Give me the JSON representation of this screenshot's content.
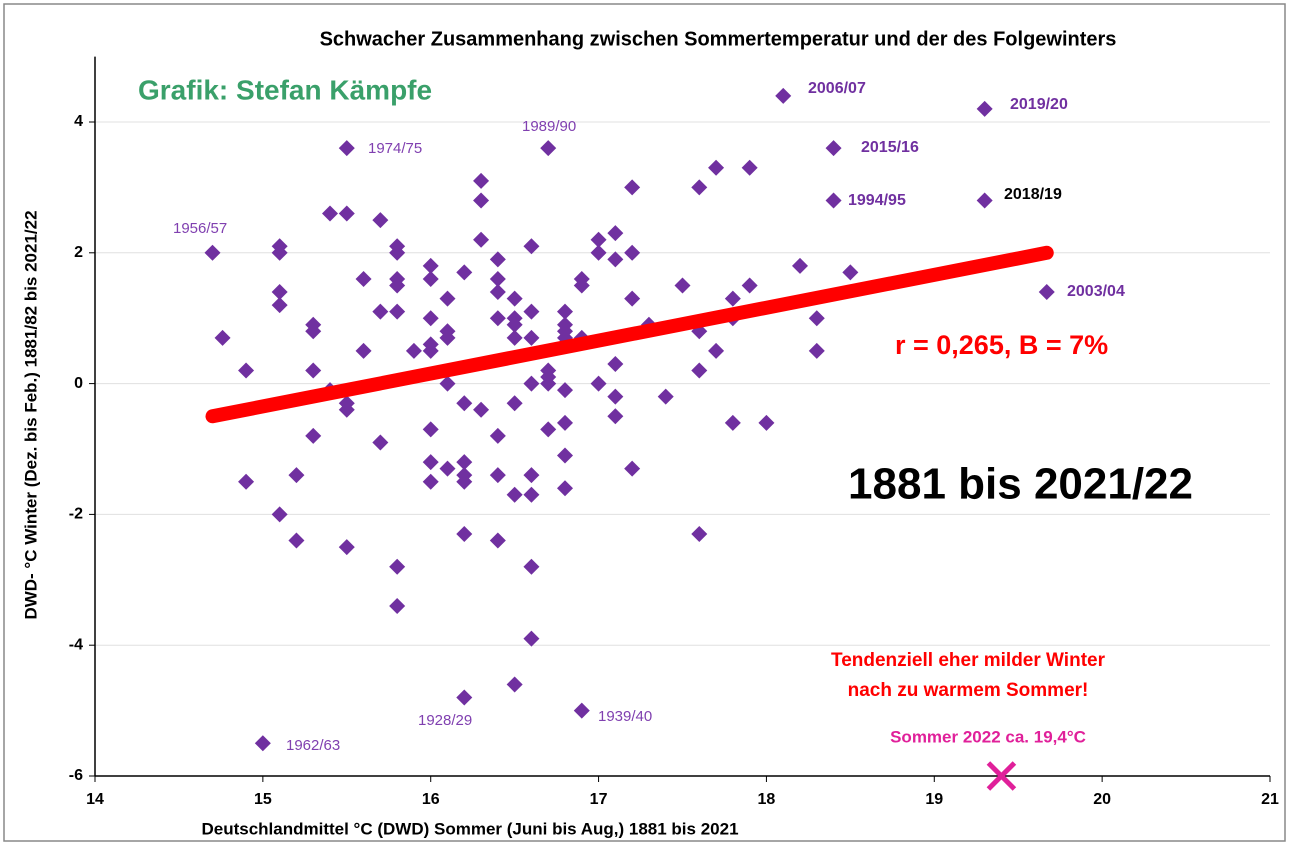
{
  "chart_data": {
    "type": "scatter",
    "title": "Schwacher Zusammenhang zwischen Sommertemperatur und der des Folgewinters",
    "xlabel": "Deutschlandmittel °C (DWD) Sommer (Juni bis Aug,) 1881 bis 2021",
    "ylabel": "DWD- °C Winter (Dez. bis Feb.) 1881/82 bis 2021/22",
    "xlim": [
      14,
      21
    ],
    "xticks": [
      14,
      15,
      16,
      17,
      18,
      19,
      20,
      21
    ],
    "ylim": [
      -6,
      5
    ],
    "yticks": [
      -6,
      -4,
      -2,
      0,
      2,
      4
    ],
    "grid": true,
    "series": [
      {
        "color": "#7030a0",
        "x": [
          14.7,
          14.76,
          14.9,
          14.9,
          15.0,
          15.1,
          15.1,
          15.1,
          15.1,
          15.1,
          15.2,
          15.2,
          15.3,
          15.3,
          15.3,
          15.3,
          15.4,
          15.4,
          15.5,
          15.5,
          15.5,
          15.5,
          15.5,
          15.6,
          15.6,
          15.7,
          15.7,
          15.7,
          15.8,
          15.8,
          15.8,
          15.8,
          15.8,
          15.8,
          15.8,
          15.9,
          16.0,
          16.0,
          16.0,
          16.0,
          16.0,
          16.0,
          16.0,
          16.0,
          16.1,
          16.1,
          16.1,
          16.1,
          16.1,
          16.2,
          16.2,
          16.2,
          16.2,
          16.2,
          16.2,
          16.2,
          16.3,
          16.3,
          16.3,
          16.3,
          16.4,
          16.4,
          16.4,
          16.4,
          16.4,
          16.4,
          16.4,
          16.5,
          16.5,
          16.5,
          16.5,
          16.5,
          16.5,
          16.5,
          16.6,
          16.6,
          16.6,
          16.6,
          16.6,
          16.6,
          16.6,
          16.6,
          16.7,
          16.7,
          16.7,
          16.7,
          16.7,
          16.8,
          16.8,
          16.8,
          16.8,
          16.8,
          16.8,
          16.8,
          16.8,
          16.9,
          16.9,
          16.9,
          16.9,
          17.0,
          17.0,
          17.0,
          17.1,
          17.1,
          17.1,
          17.1,
          17.1,
          17.2,
          17.2,
          17.2,
          17.2,
          17.3,
          17.4,
          17.5,
          17.6,
          17.6,
          17.6,
          17.6,
          17.7,
          17.7,
          17.8,
          17.8,
          17.8,
          17.9,
          17.9,
          18.0,
          18.1,
          18.2,
          18.3,
          18.3,
          18.4,
          18.4,
          18.5,
          19.3,
          19.3,
          19.67
        ],
        "values": [
          2.0,
          0.7,
          0.2,
          -1.5,
          -5.5,
          2.1,
          2.0,
          1.4,
          1.2,
          -2.0,
          -1.4,
          -2.4,
          0.9,
          0.8,
          0.2,
          -0.8,
          -0.1,
          2.6,
          3.6,
          2.6,
          -0.3,
          -0.4,
          -2.5,
          1.6,
          0.5,
          2.5,
          1.1,
          -0.9,
          2.1,
          2.0,
          1.6,
          1.5,
          1.1,
          -2.8,
          -3.4,
          0.5,
          1.8,
          1.6,
          1.0,
          0.6,
          0.5,
          -0.7,
          -1.2,
          -1.5,
          1.3,
          0.8,
          0.7,
          0.0,
          -1.3,
          1.7,
          -0.3,
          -1.2,
          -1.4,
          -1.5,
          -2.3,
          -4.8,
          3.1,
          2.8,
          2.2,
          -0.4,
          1.9,
          1.6,
          1.4,
          1.0,
          -0.8,
          -1.4,
          -2.4,
          1.3,
          1.0,
          0.9,
          0.7,
          -0.3,
          -1.7,
          -4.6,
          2.1,
          1.1,
          0.7,
          0.0,
          -1.4,
          -1.7,
          -2.8,
          -3.9,
          3.6,
          0.2,
          0.1,
          0.0,
          -0.7,
          1.1,
          0.9,
          0.8,
          0.7,
          -0.1,
          -0.6,
          -1.1,
          -1.6,
          1.6,
          1.5,
          0.7,
          -5.0,
          2.2,
          2.0,
          0.0,
          2.3,
          1.9,
          0.3,
          -0.2,
          -0.5,
          3.0,
          2.0,
          1.3,
          -1.3,
          0.9,
          -0.2,
          1.5,
          3.0,
          0.8,
          0.2,
          -2.3,
          3.3,
          0.5,
          1.3,
          1.0,
          -0.6,
          3.3,
          1.5,
          -0.6,
          4.4,
          1.8,
          1.0,
          0.5,
          3.6,
          2.8,
          1.7,
          4.2,
          2.8,
          1.4
        ]
      }
    ],
    "trendline": {
      "color": "#ff0000",
      "x": [
        14.7,
        19.67
      ],
      "values": [
        -0.5,
        2.0
      ]
    },
    "highlight": {
      "color": "#e0209a",
      "x": 19.4,
      "y": -6,
      "label": "Sommer 2022 ca. 19,4°C"
    },
    "annotations": [
      {
        "text": "Grafik: Stefan Kämpfe",
        "color": "#3aa06a"
      },
      {
        "text": "r = 0,265, B = 7%",
        "color": "#ff0000"
      },
      {
        "text": "1881 bis 2021/22",
        "color": "#000000"
      },
      {
        "text": "Tendenziell eher milder Winter",
        "color": "#ff0000"
      },
      {
        "text": "nach zu warmem Sommer!",
        "color": "#ff0000"
      },
      {
        "text": "1956/57",
        "color": "#8040b0"
      },
      {
        "text": "1974/75",
        "color": "#8040b0"
      },
      {
        "text": "1989/90",
        "color": "#8040b0"
      },
      {
        "text": "2006/07",
        "color": "#7030a0"
      },
      {
        "text": "2019/20",
        "color": "#7030a0"
      },
      {
        "text": "2015/16",
        "color": "#7030a0"
      },
      {
        "text": "1994/95",
        "color": "#7030a0"
      },
      {
        "text": "2018/19",
        "color": "#000000"
      },
      {
        "text": "2003/04",
        "color": "#7030a0"
      },
      {
        "text": "1962/63",
        "color": "#8040b0"
      },
      {
        "text": "1928/29",
        "color": "#8040b0"
      },
      {
        "text": "1939/40",
        "color": "#8040b0"
      }
    ]
  }
}
